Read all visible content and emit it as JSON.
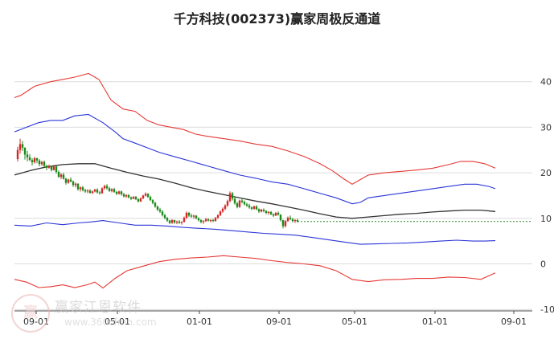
{
  "title": "千方科技(002373)赢家周极反通道",
  "watermark": {
    "logo": "赢",
    "name": "赢家江恩软件",
    "url": "www.360cfmn.com"
  },
  "chart_data": {
    "type": "candlestick-with-channels",
    "title": "千方科技(002373)赢家周极反通道",
    "ylim": [
      -10,
      45
    ],
    "yticks": [
      40,
      30,
      20,
      10,
      0,
      -10
    ],
    "xticks": [
      "09-01",
      "05-01",
      "01-01",
      "09-01",
      "05-01",
      "01-01",
      "09-01"
    ],
    "grid": true,
    "colors": {
      "up": "#d62728",
      "down": "#1a8a1a",
      "outer": "#e53935",
      "inner": "#2b35d8",
      "middle": "#333333",
      "last": "#2e8b2e"
    },
    "series": [
      {
        "key": "outer_upper",
        "x": [
          0,
          8,
          25,
          45,
          60,
          75,
          92,
          105,
          120,
          135,
          150,
          165,
          180,
          195,
          210,
          225,
          240,
          260,
          280,
          300,
          320,
          340,
          360,
          380,
          395,
          410,
          420,
          430,
          440,
          460,
          480,
          500,
          520,
          540,
          555,
          570,
          585,
          598
        ],
        "y": [
          36.5,
          37,
          39,
          40,
          40.5,
          41,
          41.8,
          40.5,
          36,
          34,
          33.5,
          31.5,
          30.5,
          30,
          29.5,
          28.5,
          28,
          27.5,
          27,
          26.3,
          25.8,
          24.8,
          23.6,
          22,
          20.5,
          18.6,
          17.5,
          18.5,
          19.5,
          20,
          20.3,
          20.6,
          21,
          21.8,
          22.5,
          22.5,
          22,
          21
        ]
      },
      {
        "key": "inner_upper",
        "x": [
          0,
          15,
          30,
          45,
          60,
          75,
          92,
          110,
          125,
          135,
          150,
          165,
          180,
          200,
          220,
          240,
          260,
          280,
          300,
          320,
          340,
          360,
          380,
          400,
          420,
          430,
          440,
          460,
          480,
          500,
          520,
          540,
          560,
          575,
          590,
          598
        ],
        "y": [
          29,
          30,
          31,
          31.5,
          31.5,
          32.5,
          32.8,
          31,
          29,
          27.5,
          26.5,
          25.5,
          24.5,
          23.5,
          22.5,
          21.5,
          20.5,
          19.5,
          18.8,
          18,
          17.5,
          16.5,
          15.5,
          14.5,
          13.2,
          13.5,
          14.5,
          15,
          15.5,
          16,
          16.5,
          17,
          17.5,
          17.5,
          17,
          16.5
        ]
      },
      {
        "key": "middle",
        "x": [
          0,
          20,
          40,
          60,
          80,
          100,
          120,
          140,
          160,
          180,
          200,
          220,
          240,
          260,
          280,
          300,
          320,
          340,
          360,
          380,
          400,
          420,
          440,
          460,
          480,
          500,
          520,
          540,
          560,
          580,
          598
        ],
        "y": [
          19.5,
          20.5,
          21.3,
          21.8,
          22,
          22,
          21,
          20.1,
          19.3,
          18.6,
          17.7,
          16.7,
          15.9,
          15.2,
          14.5,
          13.8,
          13.2,
          12.5,
          11.8,
          11,
          10.3,
          10,
          10.3,
          10.6,
          10.9,
          11.1,
          11.4,
          11.6,
          11.8,
          11.8,
          11.5
        ]
      },
      {
        "key": "inner_lower",
        "x": [
          0,
          20,
          40,
          60,
          80,
          95,
          110,
          130,
          150,
          170,
          190,
          210,
          230,
          250,
          270,
          290,
          310,
          330,
          350,
          370,
          390,
          410,
          430,
          450,
          470,
          490,
          510,
          530,
          550,
          570,
          585,
          598
        ],
        "y": [
          8.5,
          8.3,
          9,
          8.6,
          9,
          9.2,
          9.5,
          9,
          8.5,
          8.5,
          8.3,
          8,
          7.8,
          7.6,
          7.3,
          7,
          6.7,
          6.5,
          6.3,
          5.8,
          5.3,
          4.8,
          4.3,
          4.4,
          4.5,
          4.6,
          4.8,
          5,
          5.2,
          5,
          5,
          5.1
        ]
      },
      {
        "key": "outer_lower",
        "x": [
          0,
          15,
          30,
          45,
          60,
          75,
          90,
          100,
          110,
          125,
          140,
          160,
          180,
          200,
          220,
          240,
          260,
          280,
          300,
          320,
          340,
          360,
          380,
          400,
          420,
          440,
          460,
          480,
          500,
          520,
          540,
          560,
          580,
          598
        ],
        "y": [
          -3.4,
          -4,
          -5.2,
          -5,
          -4.6,
          -5.2,
          -4.6,
          -4,
          -5.3,
          -3.2,
          -1.5,
          -0.5,
          0.5,
          1,
          1.3,
          1.5,
          1.8,
          1.5,
          1.2,
          0.7,
          0.3,
          0,
          -0.4,
          -1.5,
          -3.4,
          -3.9,
          -3.5,
          -3.4,
          -3.2,
          -3.2,
          -2.9,
          -3,
          -3.4,
          -2
        ]
      }
    ],
    "candles": {
      "x_start": 22,
      "x_step": 3.0,
      "last_price": 9.3,
      "ohlc": [
        [
          23.0,
          25.7,
          22.5,
          25.0
        ],
        [
          25.0,
          27.5,
          24.2,
          26.3
        ],
        [
          26.3,
          27.0,
          24.8,
          25.5
        ],
        [
          25.5,
          25.6,
          22.9,
          24.0
        ],
        [
          24.0,
          24.8,
          22.5,
          23.4
        ],
        [
          23.4,
          24.1,
          22.6,
          22.8
        ],
        [
          22.8,
          23.2,
          21.6,
          22.3
        ],
        [
          22.3,
          23.5,
          22.0,
          23.2
        ],
        [
          23.2,
          23.3,
          22.1,
          22.7
        ],
        [
          22.7,
          23.0,
          21.4,
          21.9
        ],
        [
          21.9,
          22.6,
          21.5,
          22.4
        ],
        [
          22.4,
          22.7,
          21.2,
          21.5
        ],
        [
          21.5,
          21.8,
          20.6,
          21.1
        ],
        [
          21.1,
          21.8,
          20.9,
          21.5
        ],
        [
          21.5,
          21.6,
          20.3,
          20.6
        ],
        [
          20.6,
          21.7,
          20.5,
          21.4
        ],
        [
          21.4,
          21.5,
          19.8,
          20.2
        ],
        [
          20.2,
          20.5,
          18.9,
          19.1
        ],
        [
          19.1,
          19.9,
          18.6,
          19.6
        ],
        [
          19.6,
          20.0,
          18.5,
          18.7
        ],
        [
          18.7,
          18.9,
          17.4,
          17.8
        ],
        [
          17.8,
          18.7,
          17.6,
          18.5
        ],
        [
          18.5,
          19.0,
          17.9,
          18.1
        ],
        [
          18.1,
          18.3,
          16.9,
          17.3
        ],
        [
          17.3,
          17.9,
          16.8,
          17.6
        ],
        [
          17.6,
          17.7,
          16.1,
          16.4
        ],
        [
          16.4,
          17.0,
          15.9,
          16.8
        ],
        [
          16.8,
          17.1,
          15.9,
          16.2
        ],
        [
          16.2,
          16.5,
          15.6,
          15.9
        ],
        [
          15.9,
          16.4,
          15.5,
          16.1
        ],
        [
          16.1,
          16.4,
          15.4,
          15.6
        ],
        [
          15.6,
          16.1,
          15.3,
          15.9
        ],
        [
          15.9,
          16.5,
          15.7,
          16.3
        ],
        [
          16.3,
          16.6,
          15.4,
          15.7
        ],
        [
          15.7,
          16.0,
          15.2,
          15.5
        ],
        [
          15.5,
          16.8,
          15.4,
          16.6
        ],
        [
          16.6,
          17.4,
          16.3,
          17.1
        ],
        [
          17.1,
          17.5,
          16.3,
          16.6
        ],
        [
          16.6,
          16.9,
          15.8,
          16.0
        ],
        [
          16.0,
          16.6,
          15.7,
          16.4
        ],
        [
          16.4,
          16.7,
          15.6,
          15.8
        ],
        [
          15.8,
          16.0,
          15.1,
          15.4
        ],
        [
          15.4,
          16.1,
          15.2,
          15.9
        ],
        [
          15.9,
          16.1,
          15.0,
          15.3
        ],
        [
          15.3,
          15.6,
          14.6,
          14.8
        ],
        [
          14.8,
          15.3,
          14.5,
          15.1
        ],
        [
          15.1,
          15.3,
          14.4,
          14.6
        ],
        [
          14.6,
          14.8,
          14.0,
          14.3
        ],
        [
          14.3,
          14.9,
          14.2,
          14.7
        ],
        [
          14.7,
          14.9,
          14.0,
          14.2
        ],
        [
          14.2,
          14.4,
          13.5,
          13.7
        ],
        [
          13.7,
          14.6,
          13.6,
          14.4
        ],
        [
          14.4,
          15.2,
          14.2,
          15.0
        ],
        [
          15.0,
          15.7,
          14.8,
          15.4
        ],
        [
          15.4,
          15.5,
          14.5,
          14.7
        ],
        [
          14.7,
          15.0,
          13.8,
          14.0
        ],
        [
          14.0,
          14.2,
          13.1,
          13.4
        ],
        [
          13.4,
          13.6,
          12.3,
          12.6
        ],
        [
          12.6,
          12.8,
          11.6,
          11.9
        ],
        [
          11.9,
          12.3,
          11.2,
          11.5
        ],
        [
          11.5,
          11.8,
          10.4,
          10.7
        ],
        [
          10.7,
          11.0,
          9.8,
          10.1
        ],
        [
          10.1,
          10.3,
          9.2,
          9.5
        ],
        [
          9.5,
          9.7,
          8.7,
          9.0
        ],
        [
          9.0,
          9.8,
          8.8,
          9.6
        ],
        [
          9.6,
          9.7,
          8.8,
          9.1
        ],
        [
          9.1,
          9.5,
          8.7,
          9.3
        ],
        [
          9.3,
          9.6,
          8.8,
          9.0
        ],
        [
          9.0,
          9.4,
          8.6,
          9.2
        ],
        [
          9.2,
          10.4,
          9.1,
          10.1
        ],
        [
          10.1,
          11.5,
          9.9,
          11.2
        ],
        [
          11.2,
          11.4,
          10.3,
          10.6
        ],
        [
          10.6,
          11.0,
          10.1,
          10.4
        ],
        [
          10.4,
          10.8,
          9.9,
          10.6
        ],
        [
          10.6,
          10.7,
          9.8,
          10.0
        ],
        [
          10.0,
          10.2,
          9.3,
          9.6
        ],
        [
          9.6,
          9.8,
          8.9,
          9.2
        ],
        [
          9.2,
          9.6,
          8.8,
          9.4
        ],
        [
          9.4,
          10.1,
          9.2,
          9.8
        ],
        [
          9.8,
          10.0,
          9.3,
          9.5
        ],
        [
          9.5,
          9.8,
          9.1,
          9.6
        ],
        [
          9.6,
          9.9,
          9.2,
          9.4
        ],
        [
          9.4,
          10.3,
          9.3,
          10.1
        ],
        [
          10.1,
          10.9,
          9.9,
          10.7
        ],
        [
          10.7,
          11.7,
          10.5,
          11.5
        ],
        [
          11.5,
          12.4,
          11.2,
          12.1
        ],
        [
          12.1,
          13.1,
          11.8,
          12.8
        ],
        [
          12.8,
          14.1,
          12.5,
          13.8
        ],
        [
          13.8,
          15.9,
          13.5,
          15.5
        ],
        [
          15.5,
          15.8,
          13.9,
          14.3
        ],
        [
          14.3,
          14.6,
          13.0,
          13.3
        ],
        [
          13.3,
          13.6,
          12.2,
          12.5
        ],
        [
          12.5,
          14.1,
          12.3,
          13.9
        ],
        [
          13.9,
          14.5,
          13.3,
          13.6
        ],
        [
          13.6,
          13.9,
          12.8,
          13.1
        ],
        [
          13.1,
          13.4,
          12.5,
          12.8
        ],
        [
          12.8,
          13.2,
          12.1,
          12.4
        ],
        [
          12.4,
          12.6,
          11.8,
          12.1
        ],
        [
          12.1,
          12.8,
          11.9,
          12.6
        ],
        [
          12.6,
          12.9,
          11.8,
          12.0
        ],
        [
          12.0,
          12.2,
          11.2,
          11.5
        ],
        [
          11.5,
          12.1,
          11.3,
          11.9
        ],
        [
          11.9,
          12.2,
          11.3,
          11.6
        ],
        [
          11.6,
          11.8,
          10.9,
          11.2
        ],
        [
          11.2,
          11.6,
          10.8,
          11.4
        ],
        [
          11.4,
          11.6,
          10.7,
          10.9
        ],
        [
          10.9,
          11.1,
          10.3,
          10.6
        ],
        [
          10.6,
          11.4,
          10.5,
          11.2
        ],
        [
          11.2,
          11.5,
          10.6,
          10.8
        ],
        [
          10.8,
          10.9,
          9.3,
          9.6
        ],
        [
          9.6,
          9.7,
          7.8,
          8.3
        ],
        [
          8.3,
          9.6,
          8.0,
          9.4
        ],
        [
          9.4,
          10.4,
          9.2,
          10.1
        ],
        [
          10.1,
          10.6,
          9.6,
          9.8
        ],
        [
          9.8,
          10.1,
          9.1,
          9.4
        ],
        [
          9.4,
          9.8,
          9.0,
          9.6
        ],
        [
          9.6,
          9.9,
          9.1,
          9.3
        ]
      ]
    }
  }
}
